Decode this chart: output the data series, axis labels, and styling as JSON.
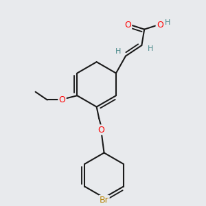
{
  "bg_color": "#e8eaed",
  "bond_color": "#1a1a1a",
  "bond_width": 1.5,
  "atom_colors": {
    "O": "#ff0000",
    "Br": "#b8860b",
    "H": "#4a8a8a",
    "C": "#1a1a1a"
  }
}
